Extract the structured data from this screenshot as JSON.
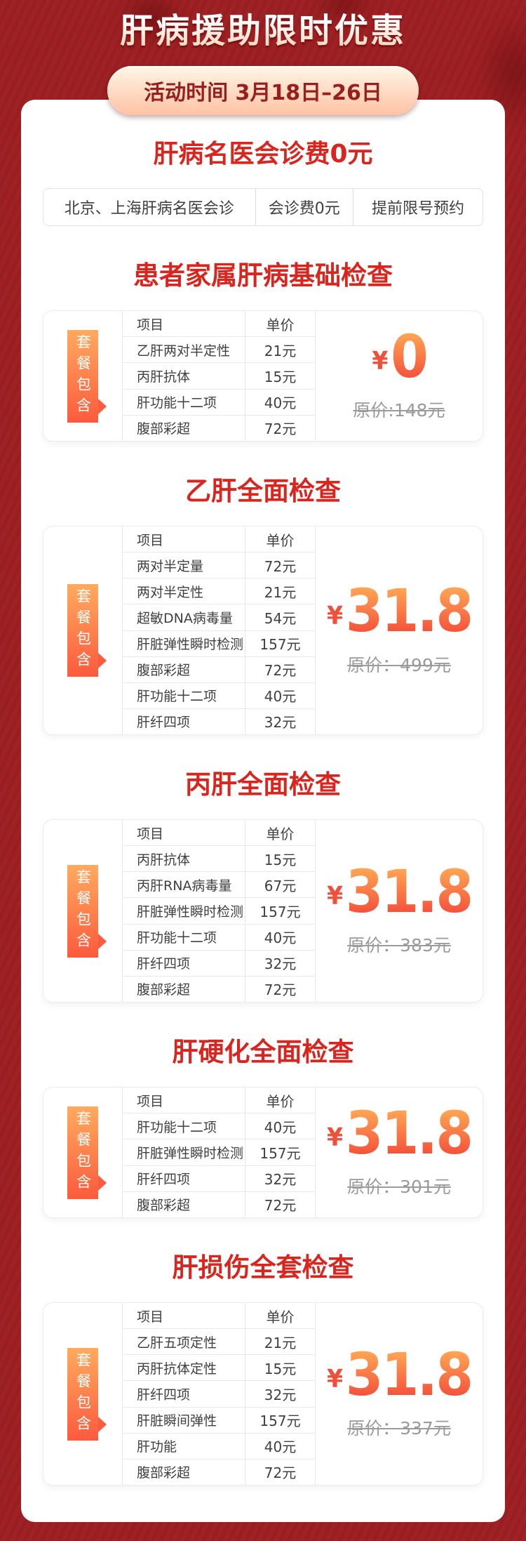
{
  "header": {
    "title": "肝病援助限时优惠",
    "time_badge": "活动时间 3月18日–26日"
  },
  "consult": {
    "title": "肝病名医会诊费0元",
    "tags": [
      "北京、上海肝病名医会诊",
      "会诊费0元",
      "提前限号预约"
    ]
  },
  "labels": {
    "ribbon": "套餐包含",
    "col_item": "项目",
    "col_price": "单价",
    "currency": "¥"
  },
  "packages": [
    {
      "title": "患者家属肝病基础检查",
      "items": [
        {
          "name": "乙肝两对半定性",
          "price": "21元"
        },
        {
          "name": "丙肝抗体",
          "price": "15元"
        },
        {
          "name": "肝功能十二项",
          "price": "40元"
        },
        {
          "name": "腹部彩超",
          "price": "72元"
        }
      ],
      "price": "0",
      "original_price": "原价:148元"
    },
    {
      "title": "乙肝全面检查",
      "items": [
        {
          "name": "两对半定量",
          "price": "72元"
        },
        {
          "name": "两对半定性",
          "price": "21元"
        },
        {
          "name": "超敏DNA病毒量",
          "price": "54元"
        },
        {
          "name": "肝脏弹性瞬时检测",
          "price": "157元"
        },
        {
          "name": "腹部彩超",
          "price": "72元"
        },
        {
          "name": "肝功能十二项",
          "price": "40元"
        },
        {
          "name": "肝纤四项",
          "price": "32元"
        }
      ],
      "price": "31.8",
      "original_price": "原价：499元"
    },
    {
      "title": "丙肝全面检查",
      "items": [
        {
          "name": "丙肝抗体",
          "price": "15元"
        },
        {
          "name": "丙肝RNA病毒量",
          "price": "67元"
        },
        {
          "name": "肝脏弹性瞬时检测",
          "price": "157元"
        },
        {
          "name": "肝功能十二项",
          "price": "40元"
        },
        {
          "name": "肝纤四项",
          "price": "32元"
        },
        {
          "name": "腹部彩超",
          "price": "72元"
        }
      ],
      "price": "31.8",
      "original_price": "原价：383元"
    },
    {
      "title": "肝硬化全面检查",
      "items": [
        {
          "name": "肝功能十二项",
          "price": "40元"
        },
        {
          "name": "肝脏弹性瞬时检测",
          "price": "157元"
        },
        {
          "name": "肝纤四项",
          "price": "32元"
        },
        {
          "name": "腹部彩超",
          "price": "72元"
        }
      ],
      "price": "31.8",
      "original_price": "原价：301元"
    },
    {
      "title": "肝损伤全套检查",
      "items": [
        {
          "name": "乙肝五项定性",
          "price": "21元"
        },
        {
          "name": "丙肝抗体定性",
          "price": "15元"
        },
        {
          "name": "肝纤四项",
          "price": "32元"
        },
        {
          "name": "肝脏瞬间弹性",
          "price": "157元"
        },
        {
          "name": "肝功能",
          "price": "40元"
        },
        {
          "name": "腹部彩超",
          "price": "72元"
        }
      ],
      "price": "31.8",
      "original_price": "原价：337元"
    }
  ],
  "colors": {
    "background_red": "#a02123",
    "title_red": "#d9251e",
    "price_gradient_top": "#ffa754",
    "price_gradient_bottom": "#f4503a",
    "ribbon_gradient_top": "#ffaa5e",
    "ribbon_gradient_bottom": "#fc5a3d",
    "badge_text": "#97201f"
  }
}
